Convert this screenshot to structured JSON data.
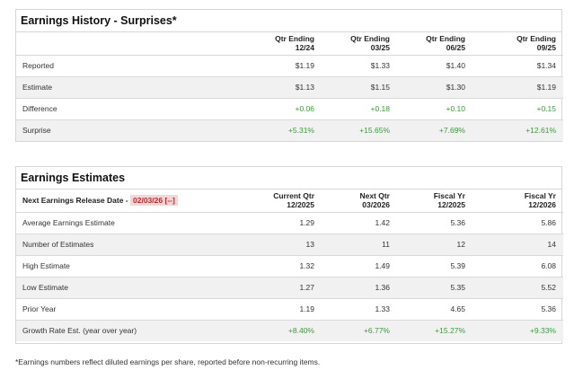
{
  "history": {
    "title": "Earnings History - Surprises*",
    "columns": [
      {
        "line1": "Qtr Ending",
        "line2": "12/24"
      },
      {
        "line1": "Qtr Ending",
        "line2": "03/25"
      },
      {
        "line1": "Qtr Ending",
        "line2": "06/25"
      },
      {
        "line1": "Qtr Ending",
        "line2": "09/25"
      }
    ],
    "rows": [
      {
        "label": "Reported",
        "values": [
          "$1.19",
          "$1.33",
          "$1.40",
          "$1.34"
        ]
      },
      {
        "label": "Estimate",
        "values": [
          "$1.13",
          "$1.15",
          "$1.30",
          "$1.19"
        ]
      },
      {
        "label": "Difference",
        "values": [
          "+0.06",
          "+0.18",
          "+0.10",
          "+0.15"
        ]
      },
      {
        "label": "Surprise",
        "values": [
          "+5.31%",
          "+15.65%",
          "+7.69%",
          "+12.61%"
        ]
      }
    ]
  },
  "estimates": {
    "title": "Earnings Estimates",
    "release_label": "Next Earnings Release Date -",
    "release_date": "02/03/26",
    "release_badge": "[--]",
    "columns": [
      {
        "line1": "Current Qtr",
        "line2": "12/2025"
      },
      {
        "line1": "Next Qtr",
        "line2": "03/2026"
      },
      {
        "line1": "Fiscal Yr",
        "line2": "12/2025"
      },
      {
        "line1": "Fiscal Yr",
        "line2": "12/2026"
      }
    ],
    "rows": [
      {
        "label": "Average Earnings Estimate",
        "values": [
          "1.29",
          "1.42",
          "5.36",
          "5.86"
        ]
      },
      {
        "label": "Number of Estimates",
        "values": [
          "13",
          "11",
          "12",
          "14"
        ]
      },
      {
        "label": "High Estimate",
        "values": [
          "1.32",
          "1.49",
          "5.39",
          "6.08"
        ]
      },
      {
        "label": "Low Estimate",
        "values": [
          "1.27",
          "1.36",
          "5.35",
          "5.52"
        ]
      },
      {
        "label": "Prior Year",
        "values": [
          "1.19",
          "1.33",
          "4.65",
          "5.36"
        ]
      },
      {
        "label": "Growth Rate Est. (year over year)",
        "values": [
          "+8.40%",
          "+6.77%",
          "+15.27%",
          "+9.33%"
        ]
      }
    ]
  },
  "footnote": "*Earnings numbers reflect diluted earnings per share, reported before non-recurring items.",
  "colors": {
    "positive": "#3a9a3a",
    "release_date": "#c0272d",
    "alt_row": "#f1f1f1"
  }
}
